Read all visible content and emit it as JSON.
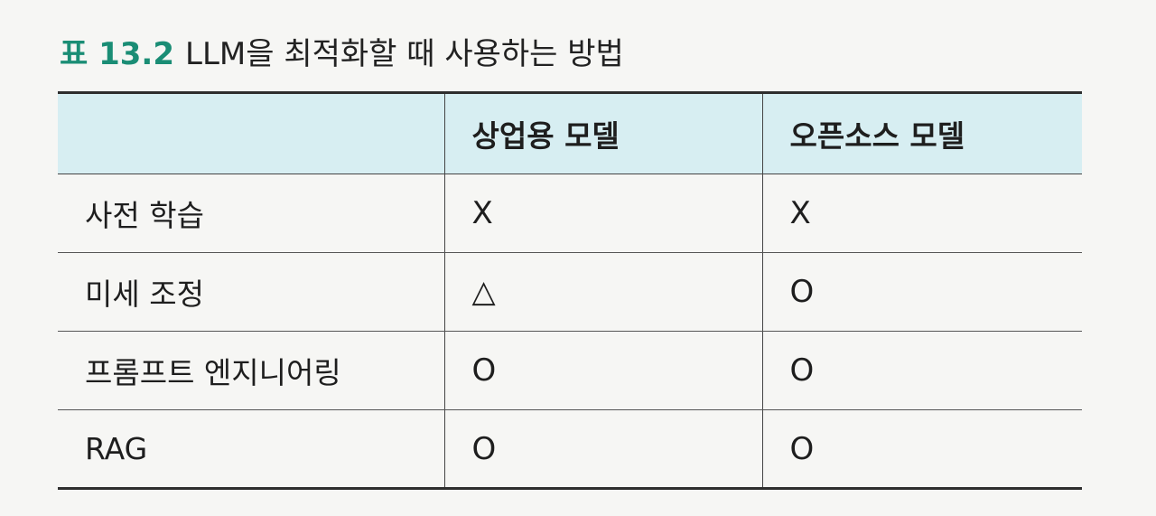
{
  "caption": {
    "label": "표 13.2",
    "title": "LLM을 최적화할 때 사용하는 방법"
  },
  "table": {
    "headers": [
      "",
      "상업용 모델",
      "오픈소스 모델"
    ],
    "rows": [
      {
        "method": "사전 학습",
        "commercial": "X",
        "open_source": "X"
      },
      {
        "method": "미세 조정",
        "commercial": "△",
        "open_source": "O"
      },
      {
        "method": "프롬프트 엔지니어링",
        "commercial": "O",
        "open_source": "O"
      },
      {
        "method": "RAG",
        "commercial": "O",
        "open_source": "O"
      }
    ]
  },
  "colors": {
    "caption_label": "#1a8d75",
    "header_background": "#d7eef2"
  }
}
